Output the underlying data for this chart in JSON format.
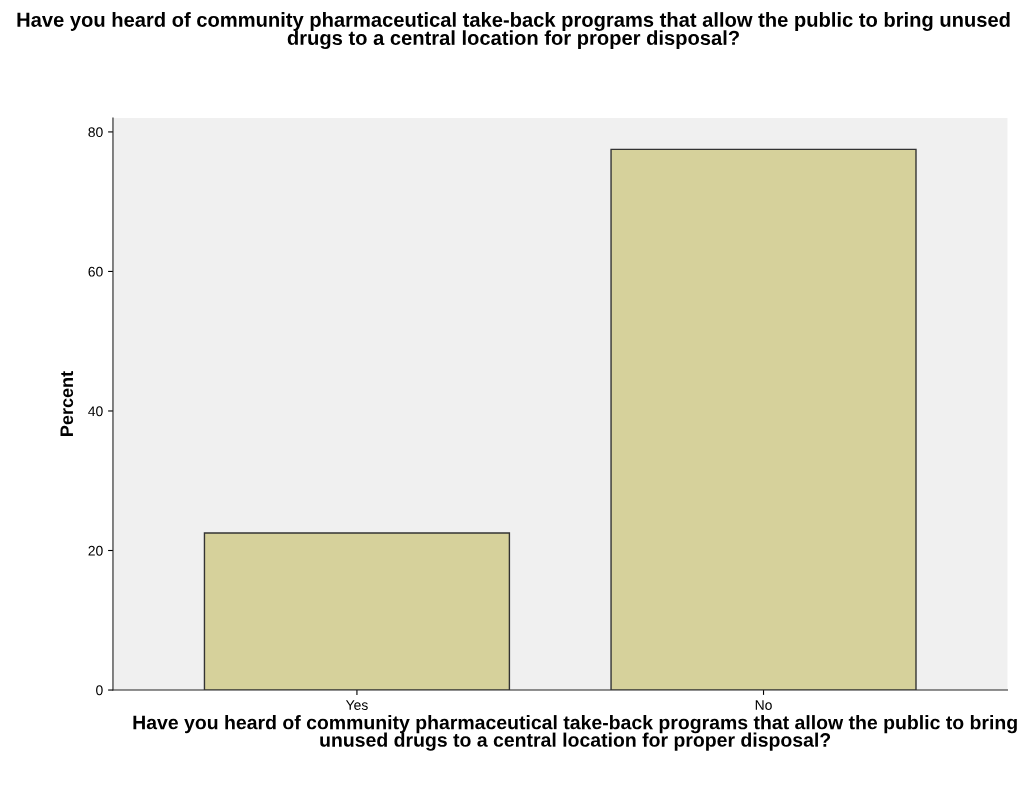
{
  "chart_data": {
    "type": "bar",
    "title": "Have you heard of community pharmaceutical take-back programs that allow the public to bring unused drugs to a central location for proper disposal?",
    "xlabel": "Have you heard of community pharmaceutical take-back programs that allow the public to bring unused drugs to a central location for proper disposal?",
    "ylabel": "Percent",
    "categories": [
      "Yes",
      "No"
    ],
    "values": [
      22.5,
      77.5
    ],
    "color": "#d6d19b",
    "ylim": [
      0,
      82
    ],
    "yticks": [
      0,
      20,
      40,
      60,
      80
    ],
    "grid": false,
    "legend": false
  }
}
